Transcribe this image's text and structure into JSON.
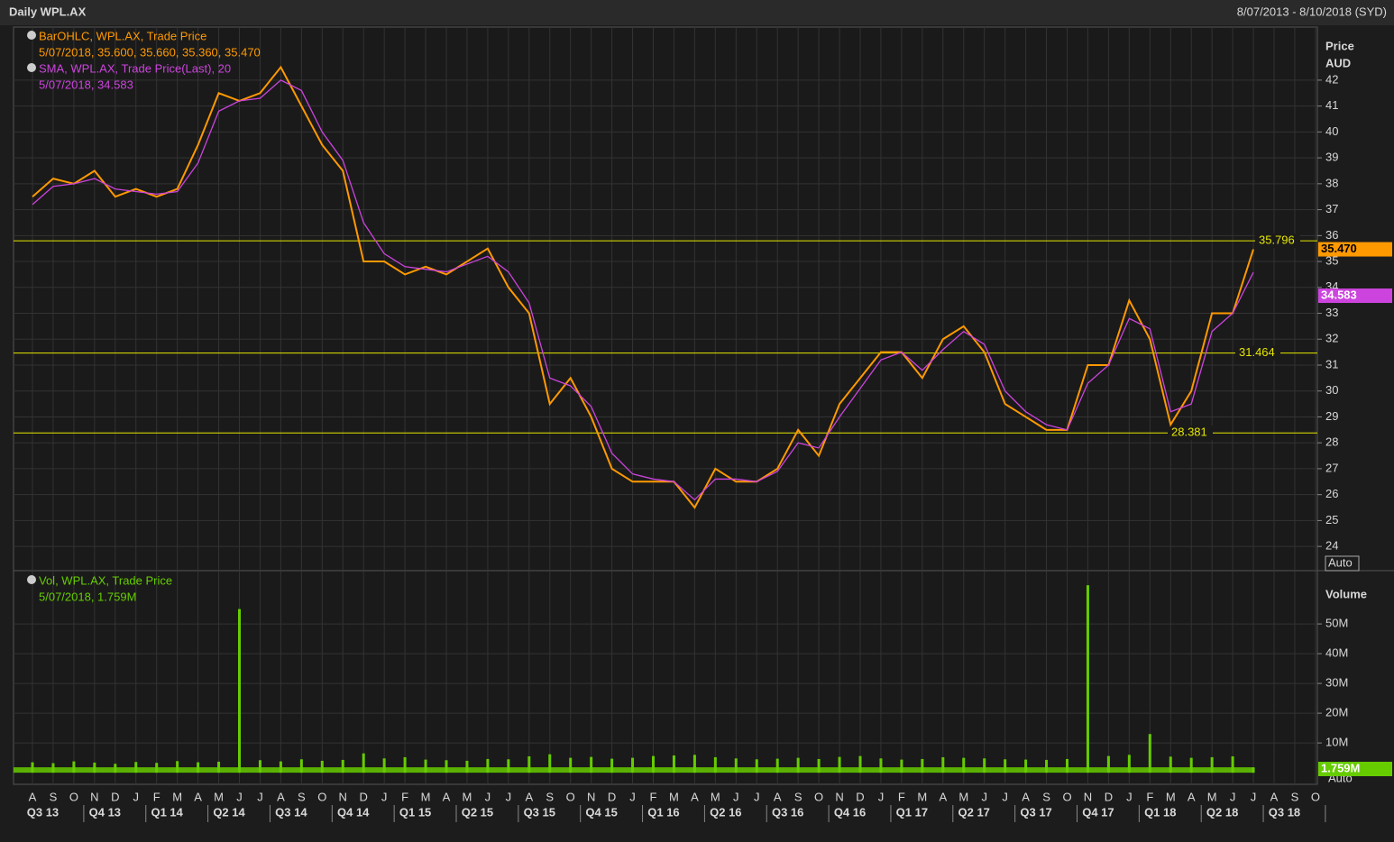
{
  "header": {
    "title": "Daily WPL.AX",
    "range": "8/07/2013 - 8/10/2018 (SYD)"
  },
  "chart_data": [
    {
      "type": "line",
      "axis_title": "Price",
      "axis_unit": "AUD",
      "scale_mode": "Auto",
      "categories": [
        "A",
        "S",
        "O",
        "N",
        "D",
        "J",
        "F",
        "M",
        "A",
        "M",
        "J",
        "J",
        "A",
        "S",
        "O",
        "N",
        "D",
        "J",
        "F",
        "M",
        "A",
        "M",
        "J",
        "J",
        "A",
        "S",
        "O",
        "N",
        "D",
        "J",
        "F",
        "M",
        "A",
        "M",
        "J",
        "J",
        "A",
        "S",
        "O",
        "N",
        "D",
        "J",
        "F",
        "M",
        "A",
        "M",
        "J",
        "J",
        "A",
        "S",
        "O",
        "N",
        "D",
        "J",
        "F",
        "M",
        "A",
        "M",
        "J",
        "J",
        "A",
        "S",
        "O"
      ],
      "quarters": [
        "Q3 13",
        "Q4 13",
        "Q1 14",
        "Q2 14",
        "Q3 14",
        "Q4 14",
        "Q1 15",
        "Q2 15",
        "Q3 15",
        "Q4 15",
        "Q1 16",
        "Q2 16",
        "Q3 16",
        "Q4 16",
        "Q1 17",
        "Q2 17",
        "Q3 17",
        "Q4 17",
        "Q1 18",
        "Q2 18",
        "Q3 18"
      ],
      "series": [
        {
          "name": "BarOHLC, WPL.AX, Trade Price",
          "legend_values": "5/07/2018, 35.600, 35.660, 35.360, 35.470",
          "last_label": "35.470",
          "color": "#ff9900",
          "values": [
            37.5,
            38.2,
            38,
            38.5,
            37.5,
            37.8,
            37.5,
            37.8,
            39.5,
            41.5,
            41.2,
            41.5,
            42.5,
            41,
            39.5,
            38.5,
            35,
            35,
            34.5,
            34.8,
            34.5,
            35,
            35.5,
            34,
            33,
            29.5,
            30.5,
            29,
            27,
            26.5,
            26.5,
            26.5,
            25.5,
            27,
            26.5,
            26.5,
            27,
            28.5,
            27.5,
            29.5,
            30.5,
            31.5,
            31.5,
            30.5,
            32,
            32.5,
            31.5,
            29.5,
            29,
            28.5,
            28.5,
            31,
            31,
            33.5,
            32,
            28.7,
            30,
            33,
            33,
            35.47,
            null,
            null,
            null
          ]
        },
        {
          "name": "SMA, WPL.AX, Trade Price(Last),  20",
          "legend_values": "5/07/2018, 34.583",
          "last_label": "34.583",
          "color": "#cc44dd",
          "values": [
            37.2,
            37.9,
            38,
            38.2,
            37.8,
            37.7,
            37.6,
            37.7,
            38.8,
            40.8,
            41.2,
            41.3,
            42,
            41.6,
            40,
            38.9,
            36.5,
            35.3,
            34.8,
            34.7,
            34.6,
            34.9,
            35.2,
            34.6,
            33.4,
            30.5,
            30.2,
            29.4,
            27.6,
            26.8,
            26.6,
            26.5,
            25.8,
            26.6,
            26.6,
            26.5,
            26.9,
            28,
            27.8,
            29,
            30.1,
            31.2,
            31.5,
            30.8,
            31.6,
            32.3,
            31.8,
            30,
            29.2,
            28.7,
            28.5,
            30.3,
            31,
            32.8,
            32.4,
            29.2,
            29.5,
            32.3,
            33,
            34.583,
            null,
            null,
            null
          ]
        }
      ],
      "levels": [
        35.796,
        31.464,
        28.381
      ],
      "ylim": [
        23.1,
        44.05
      ],
      "yticks": [
        24,
        25,
        26,
        27,
        28,
        29,
        30,
        31,
        32,
        33,
        34,
        35,
        36,
        37,
        38,
        39,
        40,
        41,
        42
      ],
      "grid": true
    },
    {
      "type": "bar",
      "axis_title": "Volume",
      "scale_mode": "Auto",
      "categories": [
        "A",
        "S",
        "O",
        "N",
        "D",
        "J",
        "F",
        "M",
        "A",
        "M",
        "J",
        "J",
        "A",
        "S",
        "O",
        "N",
        "D",
        "J",
        "F",
        "M",
        "A",
        "M",
        "J",
        "J",
        "A",
        "S",
        "O",
        "N",
        "D",
        "J",
        "F",
        "M",
        "A",
        "M",
        "J",
        "J",
        "A",
        "S",
        "O",
        "N",
        "D",
        "J",
        "F",
        "M",
        "A",
        "M",
        "J",
        "J",
        "A",
        "S",
        "O",
        "N",
        "D",
        "J",
        "F",
        "M",
        "A",
        "M",
        "J",
        "J",
        "A",
        "S",
        "O"
      ],
      "series": [
        {
          "name": "Vol, WPL.AX, Trade Price",
          "legend_values": "5/07/2018, 1.759M",
          "last_label": "1.759M",
          "color": "#66cc00",
          "values": [
            3500000,
            3200000,
            3800000,
            3400000,
            3000000,
            3600000,
            3300000,
            3900000,
            3500000,
            3700000,
            55000000,
            4200000,
            3800000,
            4500000,
            4000000,
            4300000,
            6500000,
            4800000,
            5200000,
            4400000,
            4200000,
            4000000,
            4600000,
            4500000,
            5500000,
            6200000,
            5000000,
            5300000,
            4700000,
            5000000,
            5600000,
            5800000,
            6000000,
            5200000,
            4800000,
            4500000,
            4700000,
            5000000,
            4600000,
            5300000,
            5600000,
            4800000,
            4400000,
            4600000,
            5200000,
            5000000,
            4800000,
            4500000,
            4400000,
            4300000,
            4600000,
            63000000,
            5600000,
            6000000,
            13000000,
            5400000,
            5000000,
            5200000,
            5500000,
            1759000,
            null,
            null,
            null
          ]
        }
      ],
      "ylim": [
        -3900000,
        67600000
      ],
      "yticks": [
        {
          "value": 10000000,
          "label": "10M"
        },
        {
          "value": 20000000,
          "label": "20M"
        },
        {
          "value": 30000000,
          "label": "30M"
        },
        {
          "value": 40000000,
          "label": "40M"
        },
        {
          "value": 50000000,
          "label": "50M"
        }
      ],
      "grid": true
    }
  ]
}
